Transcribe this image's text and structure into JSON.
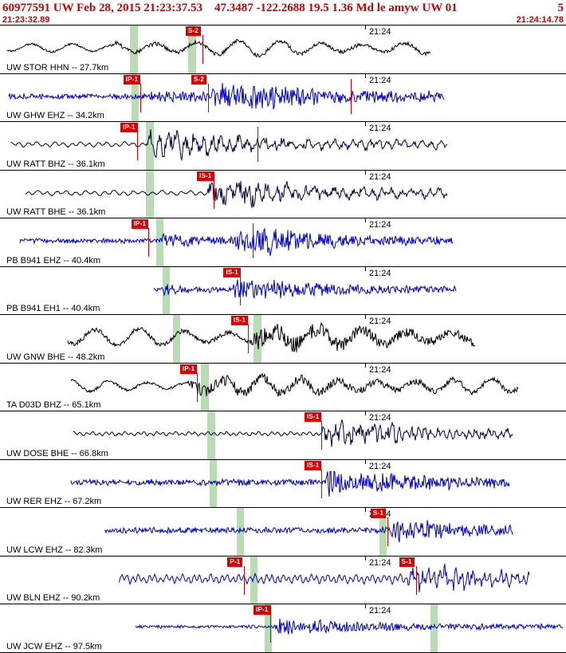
{
  "header": {
    "summary": "60977591 UW Feb 28, 2015 21:23:37.53    47.3487 -122.2688 19.5 1.36 Md le amyw UW 01",
    "page_indicator": "5",
    "start_time": "21:23:32.89",
    "end_time": "21:24:14.78"
  },
  "minute_marker": {
    "label": "21:24",
    "x": 0.645
  },
  "colors": {
    "header_text": "#cc0000",
    "pick_flag_bg": "#dd0000",
    "pick_flag_text": "#ffffff",
    "pick_line": "#cc0000",
    "phase_band": "#b9dcb4",
    "panel_border": "#000000"
  },
  "traces": [
    {
      "station_label": "UW STOR HHN -- 27.7km",
      "color": "#000000",
      "picks": [
        {
          "label": "S-2",
          "x": 0.328
        }
      ],
      "extra_lines": [],
      "bands": [
        {
          "x": 0.23,
          "w": 0.014
        },
        {
          "x": 0.332,
          "w": 0.014
        }
      ],
      "wave": {
        "kind": "lf",
        "span": [
          0.012,
          0.76
        ],
        "base": 5,
        "period": 52,
        "bursts": [
          {
            "x": 0.2,
            "amp": 9,
            "decay": 1.5
          }
        ]
      }
    },
    {
      "station_label": "UW GHW EHZ -- 34.2km",
      "color": "#0000cc",
      "picks": [
        {
          "label": "IP-1",
          "x": 0.218
        },
        {
          "label": "S-2",
          "x": 0.338
        }
      ],
      "extra_lines": [
        0.62
      ],
      "bands": [
        {
          "x": 0.232,
          "w": 0.013
        }
      ],
      "wave": {
        "kind": "hf",
        "span": [
          0.016,
          0.785
        ],
        "base": 3,
        "bursts": [
          {
            "x": 0.265,
            "amp": 5,
            "decay": 0.2
          },
          {
            "x": 0.375,
            "amp": 17,
            "decay": 0.1
          },
          {
            "x": 0.44,
            "amp": 7,
            "decay": 0.35
          }
        ]
      }
    },
    {
      "station_label": "UW RATT BHZ -- 36.1km",
      "color": "#000040",
      "picks": [
        {
          "label": "IP-1",
          "x": 0.213
        }
      ],
      "extra_lines": [
        0.455
      ],
      "bands": [
        {
          "x": 0.258,
          "w": 0.014
        }
      ],
      "wave": {
        "kind": "mf",
        "span": [
          0.02,
          0.79
        ],
        "base": 2.6,
        "period": 11,
        "bursts": [
          {
            "x": 0.258,
            "amp": 16,
            "decay": 0.07
          },
          {
            "x": 0.3,
            "amp": 6,
            "decay": 0.5
          }
        ]
      }
    },
    {
      "station_label": "UW RATT BHE -- 36.1km",
      "color": "#000040",
      "picks": [
        {
          "label": "IS-1",
          "x": 0.348
        }
      ],
      "extra_lines": [],
      "bands": [
        {
          "x": 0.258,
          "w": 0.014
        }
      ],
      "wave": {
        "kind": "mf",
        "span": [
          0.045,
          0.79
        ],
        "base": 2.6,
        "period": 12,
        "bursts": [
          {
            "x": 0.365,
            "amp": 16,
            "decay": 0.08
          },
          {
            "x": 0.42,
            "amp": 6,
            "decay": 0.45
          }
        ]
      }
    },
    {
      "station_label": "PB B941 EHZ -- 40.4km",
      "color": "#0000cc",
      "picks": [
        {
          "label": "IP-1",
          "x": 0.232
        }
      ],
      "extra_lines": [
        0.447
      ],
      "bands": [
        {
          "x": 0.276,
          "w": 0.013
        }
      ],
      "wave": {
        "kind": "hf",
        "span": [
          0.035,
          0.8
        ],
        "base": 2.6,
        "bursts": [
          {
            "x": 0.283,
            "amp": 7,
            "decay": 0.1
          },
          {
            "x": 0.415,
            "amp": 16,
            "decay": 0.09
          },
          {
            "x": 0.46,
            "amp": 7,
            "decay": 0.3
          }
        ]
      }
    },
    {
      "station_label": "PB B941 EH1 -- 40.4km",
      "color": "#0000cc",
      "picks": [
        {
          "label": "IS-1",
          "x": 0.395
        }
      ],
      "extra_lines": [],
      "bands": [
        {
          "x": 0.287,
          "w": 0.013
        }
      ],
      "wave": {
        "kind": "hf",
        "span": [
          0.272,
          0.805
        ],
        "base": 2.2,
        "bursts": [
          {
            "x": 0.285,
            "amp": 8,
            "decay": 0.05
          },
          {
            "x": 0.412,
            "amp": 15,
            "decay": 0.09
          },
          {
            "x": 0.46,
            "amp": 5,
            "decay": 0.3
          }
        ]
      }
    },
    {
      "station_label": "UW GNW BHE -- 48.2km",
      "color": "#000000",
      "picks": [
        {
          "label": "IS-1",
          "x": 0.408
        }
      ],
      "extra_lines": [],
      "bands": [
        {
          "x": 0.305,
          "w": 0.014
        },
        {
          "x": 0.448,
          "w": 0.014
        }
      ],
      "wave": {
        "kind": "lf",
        "span": [
          0.12,
          0.84
        ],
        "base": 11,
        "period": 56,
        "bursts": [
          {
            "x": 0.445,
            "amp": 10,
            "decay": 0.25,
            "hf": true
          }
        ]
      }
    },
    {
      "station_label": "TA D03D BHZ -- 65.1km",
      "color": "#000000",
      "picks": [
        {
          "label": "IP-1",
          "x": 0.318
        }
      ],
      "extra_lines": [],
      "bands": [
        {
          "x": 0.355,
          "w": 0.014
        }
      ],
      "wave": {
        "kind": "lf",
        "span": [
          0.125,
          0.915
        ],
        "base": 7,
        "period": 48,
        "bursts": [
          {
            "x": 0.33,
            "amp": 6,
            "decay": 0.6
          },
          {
            "x": 0.335,
            "amp": 6,
            "decay": 0.3,
            "hf": true
          }
        ]
      }
    },
    {
      "station_label": "UW DOSE BHE -- 66.8km",
      "color": "#000040",
      "picks": [
        {
          "label": "IS-1",
          "x": 0.538
        }
      ],
      "extra_lines": [],
      "bands": [
        {
          "x": 0.366,
          "w": 0.014
        }
      ],
      "wave": {
        "kind": "mf",
        "span": [
          0.13,
          0.905
        ],
        "base": 2.2,
        "period": 8,
        "bursts": [
          {
            "x": 0.57,
            "amp": 15,
            "decay": 0.09
          },
          {
            "x": 0.63,
            "amp": 5,
            "decay": 0.35
          }
        ]
      }
    },
    {
      "station_label": "UW RER EHZ -- 67.2km",
      "color": "#0000cc",
      "picks": [
        {
          "label": "IS-1",
          "x": 0.538
        }
      ],
      "extra_lines": [],
      "bands": [
        {
          "x": 0.37,
          "w": 0.013
        }
      ],
      "wave": {
        "kind": "hf",
        "span": [
          0.125,
          0.9
        ],
        "base": 3.6,
        "bursts": [
          {
            "x": 0.575,
            "amp": 16,
            "decay": 0.09
          },
          {
            "x": 0.65,
            "amp": 5,
            "decay": 0.35
          }
        ]
      }
    },
    {
      "station_label": "UW LCW EHZ -- 82.3km",
      "color": "#0000cc",
      "picks": [
        {
          "label": "S-1",
          "x": 0.655
        }
      ],
      "extra_lines": [],
      "bands": [
        {
          "x": 0.418,
          "w": 0.013
        },
        {
          "x": 0.67,
          "w": 0.013
        }
      ],
      "wave": {
        "kind": "hf",
        "span": [
          0.185,
          0.905
        ],
        "base": 3.2,
        "bursts": [
          {
            "x": 0.69,
            "amp": 15,
            "decay": 0.08
          },
          {
            "x": 0.75,
            "amp": 4,
            "decay": 0.3
          }
        ]
      }
    },
    {
      "station_label": "UW BLN EHZ -- 90.2km",
      "color": "#0000cc",
      "picks": [
        {
          "label": "P-1",
          "x": 0.402
        },
        {
          "label": "S-1",
          "x": 0.705
        }
      ],
      "extra_lines": [],
      "bands": [
        {
          "x": 0.442,
          "w": 0.013
        }
      ],
      "wave": {
        "kind": "mf",
        "span": [
          0.21,
          0.935
        ],
        "base": 4.6,
        "period": 7,
        "bursts": [
          {
            "x": 0.72,
            "amp": 14,
            "decay": 0.07
          },
          {
            "x": 0.78,
            "amp": 4,
            "decay": 0.3
          }
        ]
      }
    },
    {
      "station_label": "UW JCW EHZ -- 97.5km",
      "color": "#0000cc",
      "picks": [
        {
          "label": "IP-1",
          "x": 0.448
        }
      ],
      "extra_lines": [],
      "bands": [
        {
          "x": 0.468,
          "w": 0.013
        },
        {
          "x": 0.76,
          "w": 0.013
        }
      ],
      "wave": {
        "kind": "hf",
        "span": [
          0.24,
          0.995
        ],
        "base": 1.7,
        "bursts": [
          {
            "x": 0.487,
            "amp": 12,
            "decay": 0.07
          },
          {
            "x": 0.54,
            "amp": 4,
            "decay": 0.5
          }
        ]
      }
    }
  ]
}
